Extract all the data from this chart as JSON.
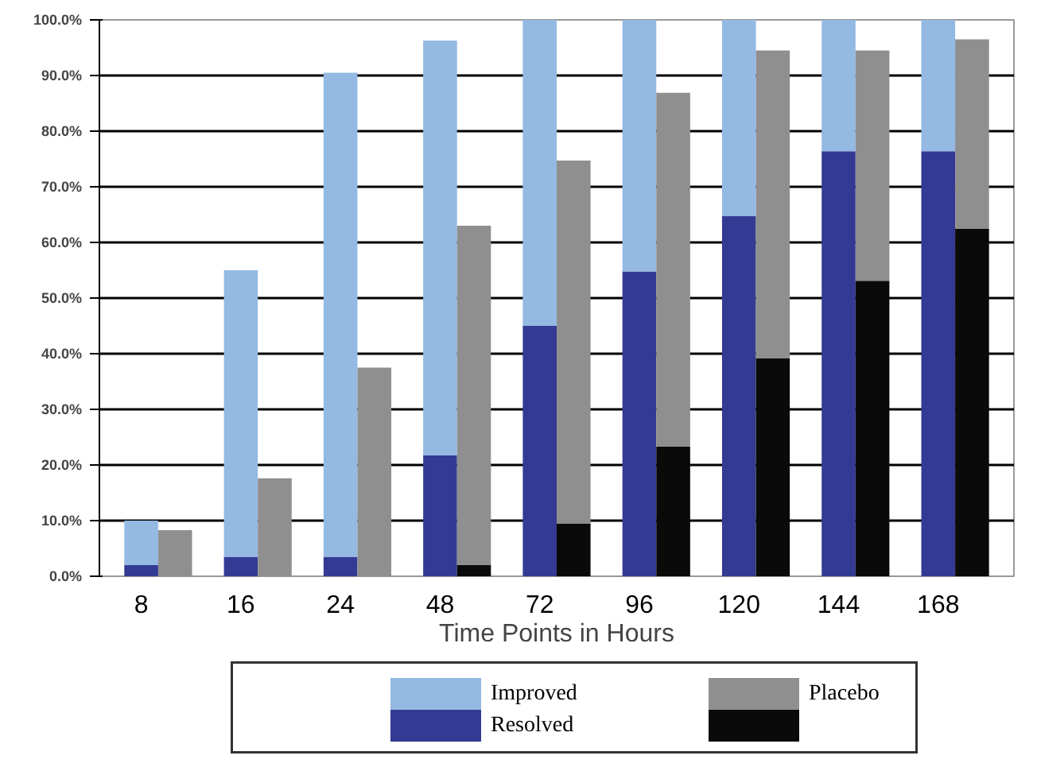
{
  "chart_data": {
    "type": "bar",
    "stacked": true,
    "xlabel": "Time Points in Hours",
    "categories": [
      "8",
      null,
      "16",
      null,
      "24",
      null,
      "48",
      null,
      "72",
      null,
      "96",
      null,
      "120",
      null,
      "144",
      null,
      "168",
      null
    ],
    "series": [
      {
        "name": "Resolved",
        "color": "#333a94",
        "values": [
          2,
          null,
          3.5,
          null,
          3.5,
          null,
          21.7,
          null,
          45,
          null,
          54.8,
          null,
          64.7,
          null,
          76.4,
          null,
          76.4,
          null
        ]
      },
      {
        "name": "Improved",
        "color": "#94b9e2",
        "values": [
          8,
          null,
          51.5,
          null,
          87,
          null,
          74.6,
          null,
          55,
          null,
          45.2,
          null,
          35.3,
          null,
          23.6,
          null,
          23.6,
          null
        ]
      },
      {
        "color": "#0a0a0a",
        "values": [
          null,
          0,
          null,
          0,
          null,
          0,
          null,
          2,
          null,
          9.5,
          null,
          23.3,
          null,
          39.2,
          null,
          53.1,
          null,
          62.5
        ]
      },
      {
        "name": "Placebo",
        "color": "#8f8f8f",
        "values": [
          null,
          8.3,
          null,
          17.6,
          null,
          37.5,
          null,
          61,
          null,
          65.2,
          null,
          63.6,
          null,
          55.3,
          null,
          41.4,
          null,
          34
        ]
      }
    ],
    "ylim": [
      0,
      100
    ],
    "yticks": [
      {
        "value": 0,
        "label": "0.0%"
      },
      {
        "value": 10,
        "label": "10.0%"
      },
      {
        "value": 20,
        "label": "20.0%"
      },
      {
        "value": 30,
        "label": "30.0%"
      },
      {
        "value": 40,
        "label": "40.0%"
      },
      {
        "value": 50,
        "label": "50.0%"
      },
      {
        "value": 60,
        "label": "60.0%"
      },
      {
        "value": 70,
        "label": "70.0%"
      },
      {
        "value": 80,
        "label": "80.0%"
      },
      {
        "value": 90,
        "label": "90.0%"
      },
      {
        "value": 100,
        "label": "100.0%"
      }
    ],
    "grid": "y",
    "legend": "bottom"
  }
}
